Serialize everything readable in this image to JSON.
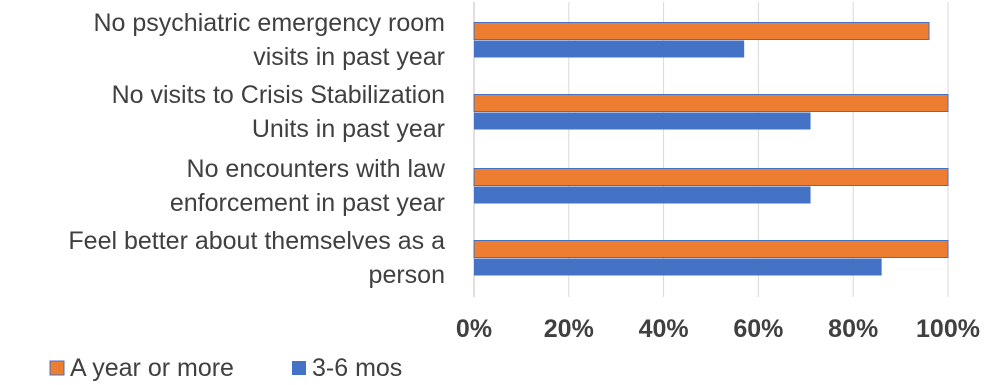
{
  "chart_data": {
    "type": "bar",
    "orientation": "horizontal",
    "categories": [
      [
        "No psychiatric emergency room",
        "visits in past year"
      ],
      [
        "No visits to Crisis Stabilization",
        "Units in past year"
      ],
      [
        "No encounters with law",
        "enforcement in past year"
      ],
      [
        "Feel better about themselves as a",
        "person"
      ]
    ],
    "series": [
      {
        "name": "A year or more",
        "color": "#ED7D31",
        "values": [
          96,
          100,
          100,
          100
        ]
      },
      {
        "name": "3-6 mos",
        "color": "#4472C4",
        "values": [
          57,
          71,
          71,
          86
        ]
      }
    ],
    "x_ticks": [
      "0%",
      "20%",
      "40%",
      "60%",
      "80%",
      "100%"
    ],
    "xlim": [
      0,
      100
    ],
    "grid": true,
    "legend_position": "bottom-left",
    "title": "",
    "xlabel": "",
    "ylabel": ""
  }
}
